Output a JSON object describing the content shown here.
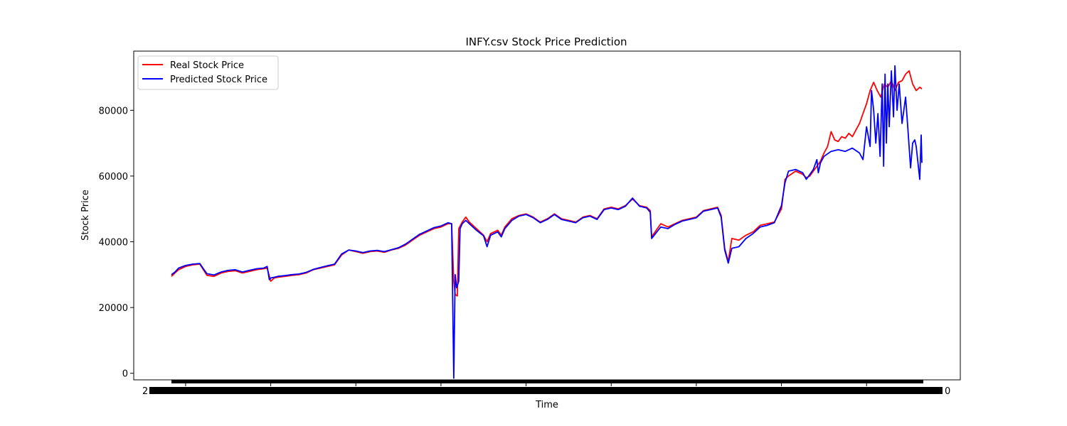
{
  "chart_data": {
    "type": "line",
    "title": "INFY.csv Stock Price Prediction",
    "xlabel": "Time",
    "ylabel": "Stock Price",
    "ylim": [
      -2000,
      98000
    ],
    "yticks": [
      0,
      20000,
      40000,
      60000,
      80000
    ],
    "xlim": [
      0,
      1060
    ],
    "grid": false,
    "legend_position": "upper left",
    "x_tick_labels_note": "dense overlapping date labels (illegible)",
    "x_tick_label_fragments": [
      "2",
      "0"
    ],
    "x_major_ticks": [
      20,
      140,
      260,
      380,
      500,
      620,
      740,
      860,
      980
    ],
    "series": [
      {
        "name": "Real Stock Price",
        "color": "#ff0000",
        "points": [
          [
            0,
            29500
          ],
          [
            5,
            30500
          ],
          [
            10,
            31500
          ],
          [
            20,
            32500
          ],
          [
            30,
            33000
          ],
          [
            40,
            33200
          ],
          [
            45,
            31500
          ],
          [
            50,
            29800
          ],
          [
            60,
            29500
          ],
          [
            70,
            30500
          ],
          [
            80,
            31000
          ],
          [
            90,
            31200
          ],
          [
            100,
            30500
          ],
          [
            110,
            31000
          ],
          [
            120,
            31500
          ],
          [
            130,
            31800
          ],
          [
            135,
            32000
          ],
          [
            140,
            28000
          ],
          [
            145,
            29000
          ],
          [
            150,
            29200
          ],
          [
            160,
            29500
          ],
          [
            170,
            29800
          ],
          [
            180,
            30000
          ],
          [
            190,
            30500
          ],
          [
            200,
            31500
          ],
          [
            210,
            32000
          ],
          [
            220,
            32500
          ],
          [
            230,
            33000
          ],
          [
            240,
            36000
          ],
          [
            250,
            37500
          ],
          [
            260,
            37000
          ],
          [
            270,
            36500
          ],
          [
            280,
            37000
          ],
          [
            290,
            37200
          ],
          [
            300,
            36800
          ],
          [
            310,
            37500
          ],
          [
            320,
            38000
          ],
          [
            330,
            39000
          ],
          [
            340,
            40500
          ],
          [
            350,
            42000
          ],
          [
            360,
            43000
          ],
          [
            370,
            44000
          ],
          [
            380,
            44500
          ],
          [
            390,
            45500
          ],
          [
            395,
            45500
          ],
          [
            398,
            28000
          ],
          [
            400,
            24000
          ],
          [
            403,
            23500
          ],
          [
            405,
            44000
          ],
          [
            410,
            46000
          ],
          [
            415,
            47500
          ],
          [
            420,
            46000
          ],
          [
            430,
            44000
          ],
          [
            440,
            42000
          ],
          [
            445,
            40000
          ],
          [
            450,
            42500
          ],
          [
            460,
            43500
          ],
          [
            465,
            42000
          ],
          [
            470,
            44500
          ],
          [
            480,
            47000
          ],
          [
            490,
            48000
          ],
          [
            500,
            48500
          ],
          [
            510,
            47500
          ],
          [
            520,
            46000
          ],
          [
            530,
            47000
          ],
          [
            540,
            48500
          ],
          [
            550,
            47000
          ],
          [
            560,
            46500
          ],
          [
            570,
            46000
          ],
          [
            580,
            47500
          ],
          [
            590,
            48000
          ],
          [
            600,
            47000
          ],
          [
            610,
            50000
          ],
          [
            620,
            50500
          ],
          [
            630,
            50000
          ],
          [
            640,
            51000
          ],
          [
            650,
            53000
          ],
          [
            660,
            51000
          ],
          [
            670,
            50500
          ],
          [
            675,
            49500
          ],
          [
            677,
            41500
          ],
          [
            685,
            44000
          ],
          [
            690,
            45500
          ],
          [
            700,
            44500
          ],
          [
            710,
            45500
          ],
          [
            720,
            46500
          ],
          [
            730,
            47000
          ],
          [
            740,
            47500
          ],
          [
            750,
            49500
          ],
          [
            760,
            50000
          ],
          [
            770,
            50500
          ],
          [
            775,
            48000
          ],
          [
            780,
            38000
          ],
          [
            785,
            34000
          ],
          [
            790,
            41000
          ],
          [
            800,
            40500
          ],
          [
            810,
            42000
          ],
          [
            820,
            43000
          ],
          [
            830,
            45000
          ],
          [
            840,
            45500
          ],
          [
            850,
            46000
          ],
          [
            860,
            50000
          ],
          [
            865,
            59000
          ],
          [
            870,
            60000
          ],
          [
            880,
            61500
          ],
          [
            890,
            60500
          ],
          [
            895,
            59500
          ],
          [
            900,
            60000
          ],
          [
            910,
            63000
          ],
          [
            915,
            64500
          ],
          [
            920,
            67000
          ],
          [
            925,
            69000
          ],
          [
            930,
            73500
          ],
          [
            935,
            71000
          ],
          [
            940,
            70500
          ],
          [
            945,
            72000
          ],
          [
            950,
            71500
          ],
          [
            955,
            73000
          ],
          [
            960,
            72000
          ],
          [
            965,
            74000
          ],
          [
            970,
            76000
          ],
          [
            975,
            79000
          ],
          [
            980,
            82000
          ],
          [
            985,
            86000
          ],
          [
            990,
            88500
          ],
          [
            995,
            86000
          ],
          [
            1000,
            84000
          ],
          [
            1005,
            88000
          ],
          [
            1010,
            87000
          ],
          [
            1015,
            89000
          ],
          [
            1020,
            86000
          ],
          [
            1025,
            88500
          ],
          [
            1030,
            89000
          ],
          [
            1035,
            91000
          ],
          [
            1040,
            92000
          ],
          [
            1045,
            88000
          ],
          [
            1050,
            86000
          ],
          [
            1055,
            87000
          ],
          [
            1058,
            86500
          ]
        ]
      },
      {
        "name": "Predicted Stock Price",
        "color": "#0000ff",
        "points": [
          [
            0,
            30000
          ],
          [
            5,
            30800
          ],
          [
            10,
            32000
          ],
          [
            20,
            32800
          ],
          [
            30,
            33200
          ],
          [
            40,
            33400
          ],
          [
            45,
            31800
          ],
          [
            50,
            30300
          ],
          [
            60,
            29900
          ],
          [
            70,
            30800
          ],
          [
            80,
            31300
          ],
          [
            90,
            31500
          ],
          [
            100,
            30800
          ],
          [
            110,
            31300
          ],
          [
            120,
            31800
          ],
          [
            130,
            32000
          ],
          [
            135,
            32500
          ],
          [
            138,
            28500
          ],
          [
            140,
            29000
          ],
          [
            145,
            29200
          ],
          [
            150,
            29500
          ],
          [
            160,
            29700
          ],
          [
            170,
            30000
          ],
          [
            180,
            30200
          ],
          [
            190,
            30700
          ],
          [
            200,
            31600
          ],
          [
            210,
            32200
          ],
          [
            220,
            32700
          ],
          [
            230,
            33200
          ],
          [
            240,
            36300
          ],
          [
            250,
            37500
          ],
          [
            260,
            37200
          ],
          [
            270,
            36700
          ],
          [
            280,
            37200
          ],
          [
            290,
            37400
          ],
          [
            300,
            37000
          ],
          [
            310,
            37600
          ],
          [
            320,
            38200
          ],
          [
            330,
            39300
          ],
          [
            340,
            40800
          ],
          [
            350,
            42300
          ],
          [
            360,
            43300
          ],
          [
            370,
            44300
          ],
          [
            380,
            44800
          ],
          [
            390,
            45800
          ],
          [
            395,
            45500
          ],
          [
            398,
            -1500
          ],
          [
            400,
            30000
          ],
          [
            402,
            26000
          ],
          [
            405,
            28000
          ],
          [
            407,
            44000
          ],
          [
            410,
            45500
          ],
          [
            415,
            46500
          ],
          [
            420,
            45500
          ],
          [
            430,
            43500
          ],
          [
            440,
            41800
          ],
          [
            445,
            38500
          ],
          [
            450,
            42000
          ],
          [
            460,
            43000
          ],
          [
            465,
            41500
          ],
          [
            470,
            44000
          ],
          [
            480,
            46500
          ],
          [
            490,
            47800
          ],
          [
            500,
            48300
          ],
          [
            510,
            47300
          ],
          [
            520,
            45800
          ],
          [
            530,
            46800
          ],
          [
            540,
            48300
          ],
          [
            550,
            46800
          ],
          [
            560,
            46300
          ],
          [
            570,
            45800
          ],
          [
            580,
            47300
          ],
          [
            590,
            47800
          ],
          [
            600,
            46800
          ],
          [
            610,
            49800
          ],
          [
            620,
            50300
          ],
          [
            630,
            49800
          ],
          [
            640,
            50800
          ],
          [
            650,
            53300
          ],
          [
            660,
            50800
          ],
          [
            670,
            50300
          ],
          [
            675,
            49000
          ],
          [
            677,
            41000
          ],
          [
            685,
            43200
          ],
          [
            690,
            44500
          ],
          [
            700,
            44000
          ],
          [
            710,
            45300
          ],
          [
            720,
            46300
          ],
          [
            730,
            46800
          ],
          [
            740,
            47300
          ],
          [
            750,
            49300
          ],
          [
            760,
            49800
          ],
          [
            770,
            50300
          ],
          [
            775,
            47500
          ],
          [
            780,
            37500
          ],
          [
            785,
            33500
          ],
          [
            790,
            38000
          ],
          [
            800,
            38500
          ],
          [
            810,
            41000
          ],
          [
            820,
            42500
          ],
          [
            830,
            44500
          ],
          [
            840,
            45000
          ],
          [
            850,
            45800
          ],
          [
            860,
            51000
          ],
          [
            865,
            58000
          ],
          [
            870,
            61500
          ],
          [
            880,
            62000
          ],
          [
            890,
            61000
          ],
          [
            895,
            59000
          ],
          [
            900,
            60500
          ],
          [
            905,
            62000
          ],
          [
            910,
            65000
          ],
          [
            912,
            61000
          ],
          [
            915,
            64000
          ],
          [
            920,
            66000
          ],
          [
            930,
            67500
          ],
          [
            940,
            68000
          ],
          [
            950,
            67500
          ],
          [
            960,
            68500
          ],
          [
            970,
            67000
          ],
          [
            975,
            65000
          ],
          [
            980,
            75000
          ],
          [
            985,
            69000
          ],
          [
            987,
            86000
          ],
          [
            990,
            80000
          ],
          [
            993,
            70000
          ],
          [
            996,
            79000
          ],
          [
            999,
            66000
          ],
          [
            1002,
            88000
          ],
          [
            1004,
            63000
          ],
          [
            1006,
            91000
          ],
          [
            1008,
            70000
          ],
          [
            1010,
            88000
          ],
          [
            1012,
            75000
          ],
          [
            1015,
            92000
          ],
          [
            1018,
            78000
          ],
          [
            1020,
            93500
          ],
          [
            1023,
            80000
          ],
          [
            1026,
            88000
          ],
          [
            1030,
            76000
          ],
          [
            1035,
            84000
          ],
          [
            1038,
            75000
          ],
          [
            1042,
            62500
          ],
          [
            1045,
            70000
          ],
          [
            1048,
            71000
          ],
          [
            1050,
            69000
          ],
          [
            1055,
            59000
          ],
          [
            1057,
            72500
          ],
          [
            1058,
            64000
          ]
        ]
      }
    ]
  }
}
